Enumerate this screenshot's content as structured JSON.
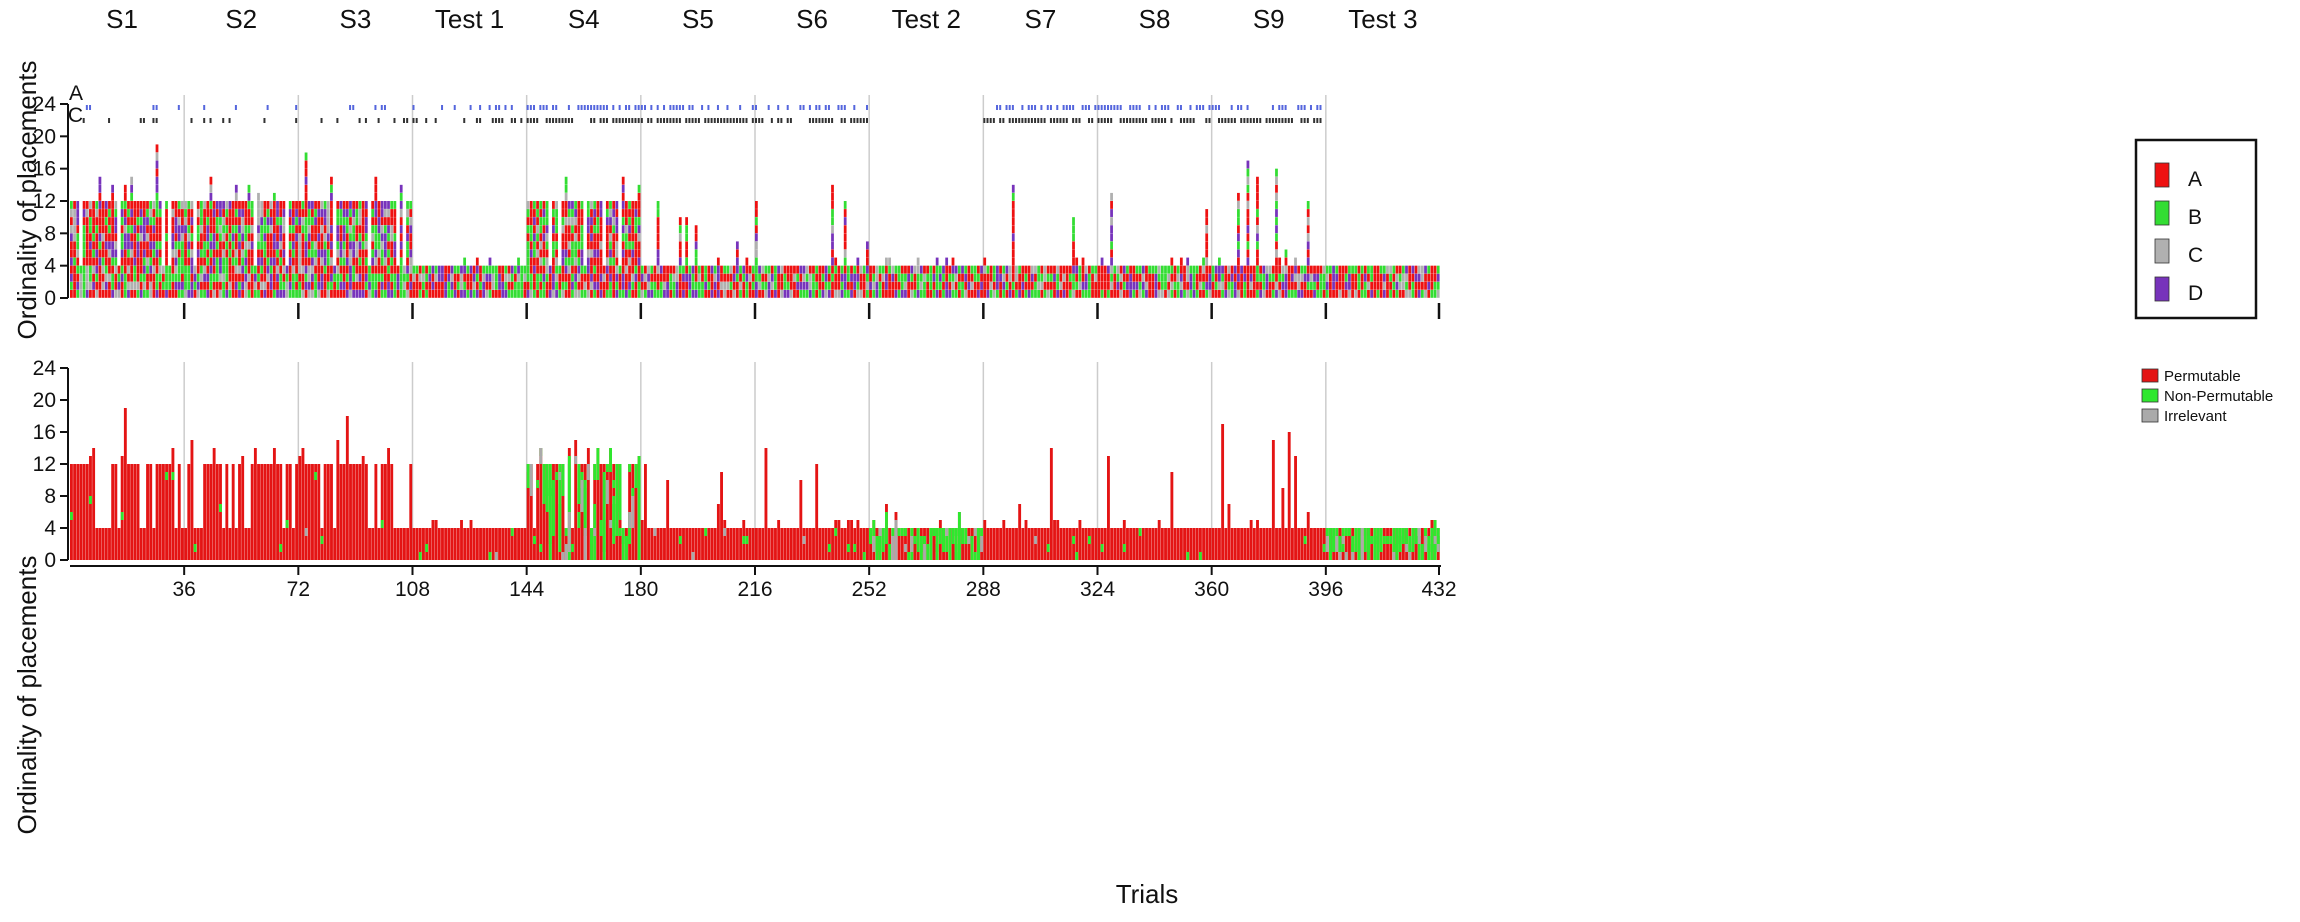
{
  "figure_title": "",
  "sessions": [
    "S1",
    "S2",
    "S3",
    "Test 1",
    "S4",
    "S5",
    "S6",
    "Test 2",
    "S7",
    "S8",
    "S9",
    "Test 3"
  ],
  "track_labels": [
    "A",
    "C"
  ],
  "colors": {
    "A": "#ee1111",
    "B": "#33dd33",
    "C": "#b0b0b0",
    "D": "#7733bb",
    "Permutable": "#e41414",
    "Non-Permutable": "#2ee82e",
    "Irrelevant": "#aaaaaa",
    "marker_A": "#5566dd",
    "marker_C": "#333333",
    "separator": "#cccccc"
  },
  "chart_data": [
    {
      "type": "bar",
      "subtype": "stacked-sequence",
      "title": "",
      "ylabel": "Ordinality of placements",
      "xlabel": "",
      "ylim": [
        0,
        24
      ],
      "yticks": [
        0,
        4,
        8,
        12,
        16,
        20,
        24
      ],
      "xlim": [
        0,
        432
      ],
      "legend": {
        "placement": "top-right",
        "entries": [
          "A",
          "B",
          "C",
          "D"
        ]
      },
      "grid": false,
      "note": "Each trial is a stacked bar of cells colored by placement category; height = ordinality reached on that trial.",
      "session_heights": [
        {
          "session": "S1",
          "trials": [
            1,
            36
          ],
          "typical": 12,
          "max": 19
        },
        {
          "session": "S2",
          "trials": [
            37,
            72
          ],
          "typical": 12,
          "max": 15
        },
        {
          "session": "S3",
          "trials": [
            73,
            108
          ],
          "typical": 12,
          "max": 18
        },
        {
          "session": "Test 1",
          "trials": [
            109,
            144
          ],
          "typical": 4,
          "max": 5
        },
        {
          "session": "S4",
          "trials": [
            145,
            180
          ],
          "typical": 12,
          "max": 15
        },
        {
          "session": "S5",
          "trials": [
            181,
            216
          ],
          "typical": 4,
          "max": 12
        },
        {
          "session": "S6",
          "trials": [
            217,
            252
          ],
          "typical": 4,
          "max": 14
        },
        {
          "session": "Test 2",
          "trials": [
            253,
            288
          ],
          "typical": 4,
          "max": 5
        },
        {
          "session": "S7",
          "trials": [
            289,
            324
          ],
          "typical": 4,
          "max": 14
        },
        {
          "session": "S8",
          "trials": [
            325,
            360
          ],
          "typical": 4,
          "max": 13
        },
        {
          "session": "S9",
          "trials": [
            361,
            396
          ],
          "typical": 4,
          "max": 17
        },
        {
          "session": "Test 3",
          "trials": [
            397,
            432
          ],
          "typical": 4,
          "max": 4
        }
      ]
    },
    {
      "type": "bar",
      "subtype": "stacked-sequence",
      "title": "",
      "ylabel": "Ordinality of placements",
      "xlabel": "Trials",
      "ylim": [
        0,
        24
      ],
      "yticks": [
        0,
        4,
        8,
        12,
        16,
        20,
        24
      ],
      "xlim": [
        0,
        432
      ],
      "xticks": [
        36,
        72,
        108,
        144,
        180,
        216,
        252,
        288,
        324,
        360,
        396,
        432
      ],
      "legend": {
        "placement": "top-right",
        "entries": [
          "Permutable",
          "Non-Permutable",
          "Irrelevant"
        ]
      },
      "grid": false,
      "session_heights": [
        {
          "session": "S1",
          "trials": [
            1,
            36
          ],
          "typical": 12,
          "max": 19
        },
        {
          "session": "S2",
          "trials": [
            37,
            72
          ],
          "typical": 12,
          "max": 15
        },
        {
          "session": "S3",
          "trials": [
            73,
            108
          ],
          "typical": 12,
          "max": 18
        },
        {
          "session": "Test 1",
          "trials": [
            109,
            144
          ],
          "typical": 4,
          "max": 5
        },
        {
          "session": "S4",
          "trials": [
            145,
            180
          ],
          "typical": 12,
          "max": 15
        },
        {
          "session": "S5",
          "trials": [
            181,
            216
          ],
          "typical": 4,
          "max": 12
        },
        {
          "session": "S6",
          "trials": [
            217,
            252
          ],
          "typical": 4,
          "max": 14
        },
        {
          "session": "Test 2",
          "trials": [
            253,
            288
          ],
          "typical": 4,
          "max": 7
        },
        {
          "session": "S7",
          "trials": [
            289,
            324
          ],
          "typical": 4,
          "max": 14
        },
        {
          "session": "S8",
          "trials": [
            325,
            360
          ],
          "typical": 4,
          "max": 13
        },
        {
          "session": "S9",
          "trials": [
            361,
            396
          ],
          "typical": 4,
          "max": 17
        },
        {
          "session": "Test 3",
          "trials": [
            397,
            432
          ],
          "typical": 4,
          "max": 5
        }
      ]
    }
  ]
}
